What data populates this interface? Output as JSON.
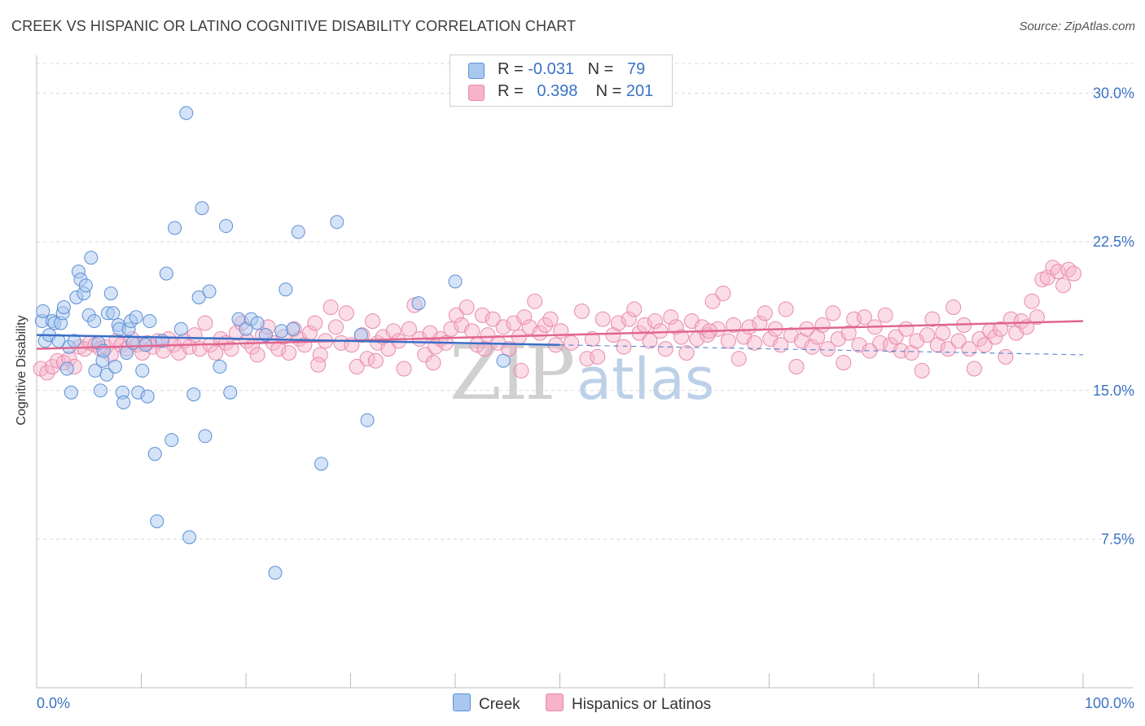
{
  "header": {
    "title": "CREEK VS HISPANIC OR LATINO COGNITIVE DISABILITY CORRELATION CHART",
    "source": "Source: ZipAtlas.com"
  },
  "watermark": {
    "part1": "ZIP",
    "part2": "atlas"
  },
  "legend_top": {
    "rows": [
      {
        "r_label": "R =",
        "r_value": "-0.031",
        "n_label": "N =",
        "n_value": "79"
      },
      {
        "r_label": "R =",
        "r_value": "0.398",
        "n_label": "N =",
        "n_value": "201"
      }
    ]
  },
  "legend_bottom": {
    "items": [
      "Creek",
      "Hispanics or Latinos"
    ]
  },
  "colors": {
    "creek_fill": "#a9c8f0",
    "creek_stroke": "#5b8fd6",
    "creek_line": "#3a6fc8",
    "hisp_fill": "#f6b3cb",
    "hisp_stroke": "#e88aab",
    "hisp_line": "#e0668f",
    "tick_label": "#3b73c4",
    "grid": "#d9d9d9"
  },
  "chart_data": {
    "type": "scatter",
    "title": "CREEK VS HISPANIC OR LATINO COGNITIVE DISABILITY CORRELATION CHART",
    "xlabel": "",
    "ylabel": "Cognitive Disability",
    "xlim": [
      0,
      100
    ],
    "ylim": [
      0,
      31.5
    ],
    "x_tick_labels": [
      "0.0%",
      "100.0%"
    ],
    "y_ticks": [
      7.5,
      15.0,
      22.5,
      30.0
    ],
    "y_tick_labels": [
      "7.5%",
      "15.0%",
      "22.5%",
      "30.0%"
    ],
    "grid": "horizontal dashed",
    "series": [
      {
        "name": "Creek",
        "r": -0.031,
        "n": 79,
        "trend": {
          "x": [
            0,
            100
          ],
          "y": [
            17.8,
            16.8
          ],
          "solid_until_x": 50
        },
        "points": [
          [
            0.5,
            18.5
          ],
          [
            0.6,
            19.0
          ],
          [
            0.8,
            17.5
          ],
          [
            1.2,
            17.8
          ],
          [
            1.5,
            18.5
          ],
          [
            1.7,
            18.4
          ],
          [
            2.1,
            17.5
          ],
          [
            2.3,
            18.4
          ],
          [
            2.5,
            18.9
          ],
          [
            2.6,
            19.2
          ],
          [
            2.9,
            16.1
          ],
          [
            3.1,
            17.2
          ],
          [
            3.3,
            14.9
          ],
          [
            3.6,
            17.5
          ],
          [
            3.8,
            19.7
          ],
          [
            4.0,
            21.0
          ],
          [
            4.2,
            20.6
          ],
          [
            4.5,
            19.9
          ],
          [
            4.7,
            20.3
          ],
          [
            5.0,
            18.8
          ],
          [
            5.2,
            21.7
          ],
          [
            5.5,
            18.5
          ],
          [
            5.6,
            16.0
          ],
          [
            5.9,
            17.4
          ],
          [
            6.1,
            15.0
          ],
          [
            6.3,
            16.5
          ],
          [
            6.4,
            17.0
          ],
          [
            6.7,
            15.8
          ],
          [
            6.8,
            18.9
          ],
          [
            7.1,
            19.9
          ],
          [
            7.3,
            18.9
          ],
          [
            7.5,
            16.2
          ],
          [
            7.8,
            18.3
          ],
          [
            7.9,
            18.1
          ],
          [
            8.2,
            14.9
          ],
          [
            8.3,
            14.4
          ],
          [
            8.6,
            16.9
          ],
          [
            8.8,
            18.1
          ],
          [
            9.0,
            18.5
          ],
          [
            9.2,
            17.4
          ],
          [
            9.5,
            18.7
          ],
          [
            9.7,
            14.9
          ],
          [
            10.1,
            16.0
          ],
          [
            10.4,
            17.3
          ],
          [
            10.6,
            14.7
          ],
          [
            10.8,
            18.5
          ],
          [
            11.3,
            11.8
          ],
          [
            11.5,
            8.4
          ],
          [
            12.0,
            17.5
          ],
          [
            12.4,
            20.9
          ],
          [
            12.9,
            12.5
          ],
          [
            13.2,
            23.2
          ],
          [
            13.8,
            18.1
          ],
          [
            14.3,
            29.0
          ],
          [
            14.6,
            7.6
          ],
          [
            15.0,
            14.8
          ],
          [
            15.5,
            19.7
          ],
          [
            15.8,
            24.2
          ],
          [
            16.1,
            12.7
          ],
          [
            16.5,
            20.0
          ],
          [
            17.5,
            16.2
          ],
          [
            18.1,
            23.3
          ],
          [
            18.5,
            14.9
          ],
          [
            19.3,
            18.6
          ],
          [
            20.0,
            18.1
          ],
          [
            20.5,
            18.6
          ],
          [
            21.1,
            18.4
          ],
          [
            21.9,
            17.8
          ],
          [
            22.8,
            5.8
          ],
          [
            23.4,
            18.0
          ],
          [
            23.8,
            20.1
          ],
          [
            24.5,
            18.1
          ],
          [
            25.0,
            23.0
          ],
          [
            27.2,
            11.3
          ],
          [
            28.7,
            23.5
          ],
          [
            31.0,
            17.8
          ],
          [
            31.6,
            13.5
          ],
          [
            36.5,
            19.4
          ],
          [
            40.0,
            20.5
          ],
          [
            44.6,
            16.5
          ]
        ]
      },
      {
        "name": "Hispanics or Latinos",
        "r": 0.398,
        "n": 201,
        "trend": {
          "x": [
            0,
            100
          ],
          "y": [
            17.1,
            18.5
          ]
        },
        "points": [
          [
            0.4,
            16.1
          ],
          [
            1.0,
            15.9
          ],
          [
            1.5,
            16.2
          ],
          [
            2.0,
            16.5
          ],
          [
            2.6,
            16.4
          ],
          [
            3.1,
            16.6
          ],
          [
            3.6,
            16.2
          ],
          [
            4.1,
            17.2
          ],
          [
            4.6,
            17.1
          ],
          [
            5.1,
            17.4
          ],
          [
            5.6,
            17.3
          ],
          [
            6.1,
            17.1
          ],
          [
            6.6,
            17.2
          ],
          [
            7.1,
            16.8
          ],
          [
            7.6,
            17.5
          ],
          [
            8.1,
            17.3
          ],
          [
            8.6,
            17.1
          ],
          [
            9.1,
            17.6
          ],
          [
            9.6,
            17.3
          ],
          [
            10.1,
            16.9
          ],
          [
            10.6,
            17.4
          ],
          [
            11.1,
            17.2
          ],
          [
            11.6,
            17.5
          ],
          [
            12.1,
            17.0
          ],
          [
            12.6,
            17.6
          ],
          [
            13.1,
            17.3
          ],
          [
            13.6,
            16.9
          ],
          [
            14.1,
            17.5
          ],
          [
            14.6,
            17.2
          ],
          [
            15.1,
            17.8
          ],
          [
            15.6,
            17.1
          ],
          [
            16.1,
            18.4
          ],
          [
            16.6,
            17.3
          ],
          [
            17.1,
            16.9
          ],
          [
            17.6,
            17.6
          ],
          [
            18.1,
            17.4
          ],
          [
            18.6,
            17.1
          ],
          [
            19.1,
            17.9
          ],
          [
            19.6,
            18.4
          ],
          [
            20.1,
            17.5
          ],
          [
            20.6,
            17.2
          ],
          [
            21.1,
            16.8
          ],
          [
            21.6,
            17.8
          ],
          [
            22.1,
            18.2
          ],
          [
            22.6,
            17.4
          ],
          [
            23.1,
            17.1
          ],
          [
            23.6,
            17.7
          ],
          [
            24.1,
            16.9
          ],
          [
            24.6,
            18.1
          ],
          [
            25.1,
            17.6
          ],
          [
            25.6,
            17.3
          ],
          [
            26.1,
            17.9
          ],
          [
            26.6,
            18.4
          ],
          [
            27.1,
            16.8
          ],
          [
            27.6,
            17.5
          ],
          [
            28.1,
            19.2
          ],
          [
            28.6,
            18.2
          ],
          [
            29.1,
            17.4
          ],
          [
            29.6,
            18.9
          ],
          [
            30.1,
            17.3
          ],
          [
            30.6,
            16.2
          ],
          [
            31.1,
            17.8
          ],
          [
            31.6,
            16.6
          ],
          [
            32.1,
            18.5
          ],
          [
            32.6,
            17.4
          ],
          [
            33.1,
            17.7
          ],
          [
            33.6,
            17.1
          ],
          [
            34.1,
            18.0
          ],
          [
            34.6,
            17.5
          ],
          [
            35.1,
            16.1
          ],
          [
            35.6,
            18.1
          ],
          [
            36.1,
            19.3
          ],
          [
            36.6,
            17.6
          ],
          [
            37.1,
            16.8
          ],
          [
            37.6,
            17.9
          ],
          [
            38.1,
            17.2
          ],
          [
            38.6,
            17.6
          ],
          [
            39.1,
            17.4
          ],
          [
            39.6,
            18.1
          ],
          [
            40.1,
            18.8
          ],
          [
            40.6,
            18.3
          ],
          [
            41.1,
            19.2
          ],
          [
            41.6,
            18.0
          ],
          [
            42.1,
            17.3
          ],
          [
            42.6,
            18.8
          ],
          [
            43.1,
            17.8
          ],
          [
            43.6,
            18.6
          ],
          [
            44.1,
            17.4
          ],
          [
            44.6,
            18.2
          ],
          [
            45.1,
            17.1
          ],
          [
            45.6,
            18.4
          ],
          [
            46.1,
            17.7
          ],
          [
            46.6,
            18.7
          ],
          [
            47.1,
            18.2
          ],
          [
            47.6,
            19.5
          ],
          [
            48.1,
            17.9
          ],
          [
            48.6,
            18.3
          ],
          [
            49.1,
            18.6
          ],
          [
            49.6,
            17.3
          ],
          [
            50.1,
            18.0
          ],
          [
            51.1,
            17.4
          ],
          [
            52.1,
            19.0
          ],
          [
            53.1,
            17.6
          ],
          [
            54.1,
            18.6
          ],
          [
            55.1,
            17.8
          ],
          [
            55.6,
            18.4
          ],
          [
            56.1,
            17.2
          ],
          [
            56.6,
            18.6
          ],
          [
            57.1,
            19.1
          ],
          [
            57.6,
            17.9
          ],
          [
            58.1,
            18.3
          ],
          [
            58.6,
            17.5
          ],
          [
            59.1,
            18.5
          ],
          [
            59.6,
            18.0
          ],
          [
            60.1,
            17.1
          ],
          [
            60.6,
            18.7
          ],
          [
            61.1,
            18.2
          ],
          [
            61.6,
            17.7
          ],
          [
            62.1,
            16.9
          ],
          [
            62.6,
            18.5
          ],
          [
            63.1,
            17.6
          ],
          [
            63.6,
            18.2
          ],
          [
            64.1,
            17.8
          ],
          [
            64.6,
            19.5
          ],
          [
            65.1,
            18.1
          ],
          [
            65.6,
            19.9
          ],
          [
            66.1,
            17.5
          ],
          [
            66.6,
            18.3
          ],
          [
            67.1,
            16.6
          ],
          [
            67.6,
            17.7
          ],
          [
            68.1,
            18.2
          ],
          [
            68.6,
            17.4
          ],
          [
            69.1,
            18.4
          ],
          [
            69.6,
            18.9
          ],
          [
            70.1,
            17.6
          ],
          [
            70.6,
            18.1
          ],
          [
            71.1,
            17.3
          ],
          [
            71.6,
            19.1
          ],
          [
            72.1,
            17.8
          ],
          [
            72.6,
            16.2
          ],
          [
            73.1,
            17.5
          ],
          [
            73.6,
            18.1
          ],
          [
            74.1,
            17.2
          ],
          [
            74.6,
            17.7
          ],
          [
            75.1,
            18.3
          ],
          [
            75.6,
            17.1
          ],
          [
            76.1,
            18.9
          ],
          [
            76.6,
            17.6
          ],
          [
            77.1,
            16.4
          ],
          [
            77.6,
            17.9
          ],
          [
            78.1,
            18.6
          ],
          [
            78.6,
            17.3
          ],
          [
            79.1,
            18.7
          ],
          [
            79.6,
            17.0
          ],
          [
            80.1,
            18.2
          ],
          [
            80.6,
            17.4
          ],
          [
            81.1,
            18.8
          ],
          [
            81.6,
            17.3
          ],
          [
            82.1,
            17.7
          ],
          [
            82.6,
            17.0
          ],
          [
            83.1,
            18.1
          ],
          [
            83.6,
            16.9
          ],
          [
            84.1,
            17.5
          ],
          [
            84.6,
            16.0
          ],
          [
            85.1,
            17.8
          ],
          [
            85.6,
            18.6
          ],
          [
            86.1,
            17.3
          ],
          [
            86.6,
            17.9
          ],
          [
            87.1,
            17.1
          ],
          [
            87.6,
            19.2
          ],
          [
            88.1,
            17.5
          ],
          [
            88.6,
            18.3
          ],
          [
            89.1,
            17.1
          ],
          [
            89.6,
            16.1
          ],
          [
            90.1,
            17.6
          ],
          [
            90.6,
            17.3
          ],
          [
            91.1,
            18.0
          ],
          [
            91.6,
            17.7
          ],
          [
            92.1,
            18.1
          ],
          [
            92.6,
            16.7
          ],
          [
            93.1,
            18.6
          ],
          [
            93.6,
            17.9
          ],
          [
            94.1,
            18.5
          ],
          [
            94.6,
            18.2
          ],
          [
            95.1,
            19.5
          ],
          [
            95.6,
            18.7
          ],
          [
            96.1,
            20.6
          ],
          [
            96.6,
            20.7
          ],
          [
            97.1,
            21.2
          ],
          [
            97.6,
            21.0
          ],
          [
            98.1,
            20.3
          ],
          [
            98.6,
            21.1
          ],
          [
            99.1,
            20.9
          ],
          [
            64.3,
            18.0
          ],
          [
            52.6,
            16.6
          ],
          [
            53.6,
            16.7
          ],
          [
            46.3,
            16.0
          ],
          [
            42.8,
            17.1
          ],
          [
            37.9,
            16.4
          ],
          [
            32.4,
            16.5
          ],
          [
            26.9,
            16.3
          ]
        ]
      }
    ]
  }
}
